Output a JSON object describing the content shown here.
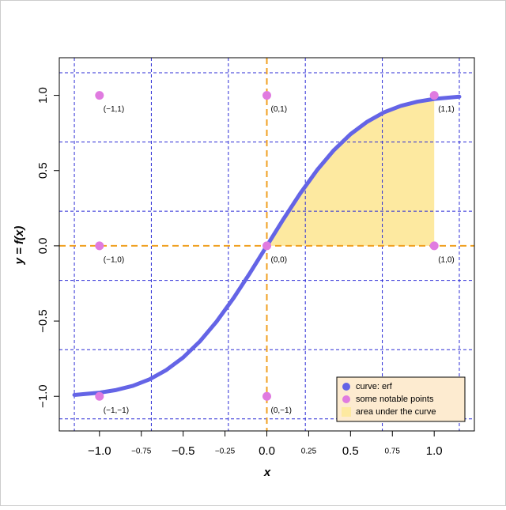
{
  "chart_data": {
    "type": "line",
    "xlabel": "x",
    "ylabel": "y = f(x)",
    "xlim": [
      -1.24,
      1.24
    ],
    "ylim": [
      -1.23,
      1.25
    ],
    "xticks": [
      {
        "value": -1.0,
        "label": "−1.0"
      },
      {
        "value": -0.75,
        "label": "−0.75"
      },
      {
        "value": -0.5,
        "label": "−0.5"
      },
      {
        "value": -0.25,
        "label": "−0.25"
      },
      {
        "value": 0,
        "label": "0.0"
      },
      {
        "value": 0.25,
        "label": "0.25"
      },
      {
        "value": 0.5,
        "label": "0.5"
      },
      {
        "value": 0.75,
        "label": "0.75"
      },
      {
        "value": 1.0,
        "label": "1.0"
      }
    ],
    "yticks": [
      {
        "value": -1.0,
        "label": "−1.0"
      },
      {
        "value": -0.5,
        "label": "−0.5"
      },
      {
        "value": 0,
        "label": "0.0"
      },
      {
        "value": 0.5,
        "label": "0.5"
      },
      {
        "value": 1.0,
        "label": "1.0"
      }
    ],
    "xgrid": [
      -1.15,
      -0.69,
      -0.23,
      0.23,
      0.69,
      1.15
    ],
    "ygrid": [
      -1.15,
      -0.69,
      -0.23,
      0.23,
      0.69,
      1.15
    ],
    "grid_color": "#2b2bd6",
    "axis_line_color": "#f0a020",
    "series": [
      {
        "name": "curve:  erf",
        "color": "#6464e6",
        "x": [
          -1.15,
          -1.0,
          -0.9,
          -0.8,
          -0.7,
          -0.6,
          -0.5,
          -0.4,
          -0.3,
          -0.2,
          -0.1,
          0,
          0.1,
          0.2,
          0.3,
          0.4,
          0.5,
          0.6,
          0.7,
          0.8,
          0.9,
          1.0,
          1.15
        ],
        "values": [
          -0.991,
          -0.976,
          -0.958,
          -0.93,
          -0.887,
          -0.825,
          -0.742,
          -0.635,
          -0.503,
          -0.349,
          -0.179,
          0,
          0.179,
          0.349,
          0.503,
          0.635,
          0.742,
          0.825,
          0.887,
          0.93,
          0.958,
          0.976,
          0.991
        ]
      },
      {
        "name": "some notable points",
        "color": "#e07be0",
        "x": [
          -1,
          0,
          1,
          -1,
          0,
          1,
          -1,
          0
        ],
        "values": [
          1,
          1,
          1,
          0,
          0,
          0,
          -1,
          -1
        ],
        "point_labels": [
          "(−1,1)",
          "(0,1)",
          "(1,1)",
          "(−1,0)",
          "(0,0)",
          "(1,0)",
          "(−1,−1)",
          "(0,−1)"
        ]
      },
      {
        "name": "area under the curve",
        "color": "#fde9a0",
        "from": 0,
        "to": 1
      }
    ],
    "legend": "bottom-right",
    "legend_bg": "#fdebd0"
  }
}
